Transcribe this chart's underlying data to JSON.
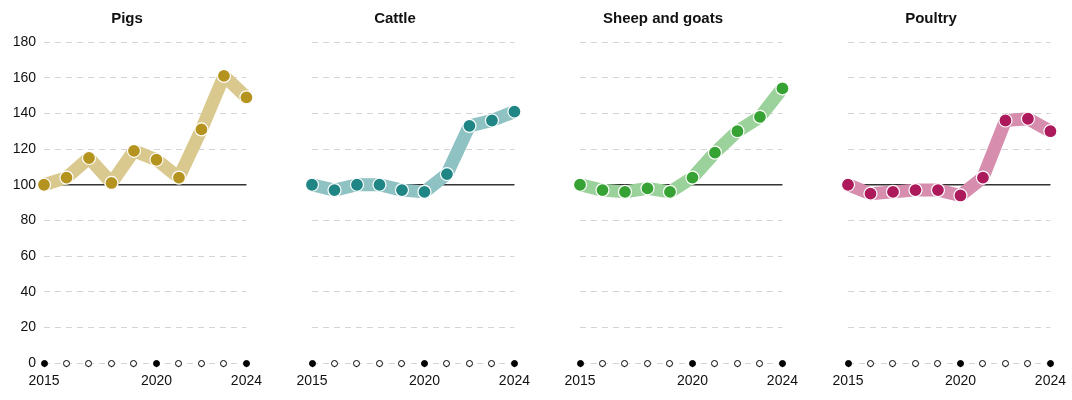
{
  "chart_data": [
    {
      "type": "line",
      "title": "Pigs",
      "x": [
        2015,
        2016,
        2017,
        2018,
        2019,
        2020,
        2021,
        2022,
        2023,
        2024
      ],
      "xlim": [
        2015,
        2024
      ],
      "xticks": [
        2015,
        {
          "value": 2016,
          "label": null
        },
        {
          "value": 2017,
          "label": null
        },
        {
          "value": 2018,
          "label": null
        },
        {
          "value": 2019,
          "label": null
        },
        2020,
        {
          "value": 2021,
          "label": null
        },
        {
          "value": 2022,
          "label": null
        },
        {
          "value": 2023,
          "label": null
        },
        2024
      ],
      "ylim": [
        0,
        180
      ],
      "yticks": [
        0,
        20,
        40,
        60,
        80,
        100,
        120,
        140,
        160,
        180
      ],
      "grid": "y",
      "marker": "circle",
      "ref_lines": [
        {
          "axis": "y",
          "value": 100
        }
      ],
      "series": [
        {
          "color": "#b5931f",
          "values": [
            100,
            104,
            115,
            101,
            119,
            114,
            104,
            131,
            161,
            149
          ]
        }
      ]
    },
    {
      "type": "line",
      "title": "Cattle",
      "x": [
        2015,
        2016,
        2017,
        2018,
        2019,
        2020,
        2021,
        2022,
        2023,
        2024
      ],
      "xlim": [
        2015,
        2024
      ],
      "xticks": [
        2015,
        {
          "value": 2016,
          "label": null
        },
        {
          "value": 2017,
          "label": null
        },
        {
          "value": 2018,
          "label": null
        },
        {
          "value": 2019,
          "label": null
        },
        2020,
        {
          "value": 2021,
          "label": null
        },
        {
          "value": 2022,
          "label": null
        },
        {
          "value": 2023,
          "label": null
        },
        2024
      ],
      "ylim": [
        0,
        180
      ],
      "yticks": [
        0,
        20,
        40,
        60,
        80,
        100,
        120,
        140,
        160,
        180
      ],
      "grid": "y",
      "marker": "circle",
      "tick_labels": "x",
      "ref_lines": [
        {
          "axis": "y",
          "value": 100
        }
      ],
      "series": [
        {
          "color": "#1f8585",
          "values": [
            100,
            97,
            100,
            100,
            97,
            96,
            106,
            133,
            136,
            141
          ]
        }
      ]
    },
    {
      "type": "line",
      "title": "Sheep and goats",
      "x": [
        2015,
        2016,
        2017,
        2018,
        2019,
        2020,
        2021,
        2022,
        2023,
        2024
      ],
      "xlim": [
        2015,
        2024
      ],
      "xticks": [
        2015,
        {
          "value": 2016,
          "label": null
        },
        {
          "value": 2017,
          "label": null
        },
        {
          "value": 2018,
          "label": null
        },
        {
          "value": 2019,
          "label": null
        },
        2020,
        {
          "value": 2021,
          "label": null
        },
        {
          "value": 2022,
          "label": null
        },
        {
          "value": 2023,
          "label": null
        },
        2024
      ],
      "ylim": [
        0,
        180
      ],
      "yticks": [
        0,
        20,
        40,
        60,
        80,
        100,
        120,
        140,
        160,
        180
      ],
      "grid": "y",
      "marker": "circle",
      "tick_labels": "x",
      "ref_lines": [
        {
          "axis": "y",
          "value": 100
        }
      ],
      "series": [
        {
          "color": "#36a234",
          "values": [
            100,
            97,
            96,
            98,
            96,
            104,
            118,
            130,
            138,
            154
          ]
        }
      ]
    },
    {
      "type": "line",
      "title": "Poultry",
      "x": [
        2015,
        2016,
        2017,
        2018,
        2019,
        2020,
        2021,
        2022,
        2023,
        2024
      ],
      "xlim": [
        2015,
        2024
      ],
      "xticks": [
        2015,
        {
          "value": 2016,
          "label": null
        },
        {
          "value": 2017,
          "label": null
        },
        {
          "value": 2018,
          "label": null
        },
        {
          "value": 2019,
          "label": null
        },
        2020,
        {
          "value": 2021,
          "label": null
        },
        {
          "value": 2022,
          "label": null
        },
        {
          "value": 2023,
          "label": null
        },
        2024
      ],
      "ylim": [
        0,
        180
      ],
      "yticks": [
        0,
        20,
        40,
        60,
        80,
        100,
        120,
        140,
        160,
        180
      ],
      "grid": "y",
      "marker": "circle",
      "tick_labels": "x",
      "ref_lines": [
        {
          "axis": "y",
          "value": 100
        }
      ],
      "series": [
        {
          "color": "#ad1a5c",
          "values": [
            100,
            95,
            96,
            97,
            97,
            94,
            104,
            136,
            137,
            130
          ]
        }
      ]
    }
  ]
}
